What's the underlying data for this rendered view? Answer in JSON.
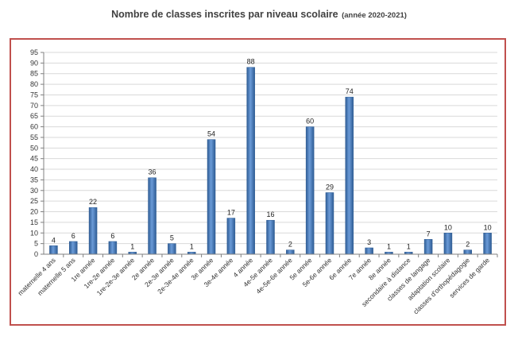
{
  "chart_data": {
    "type": "bar",
    "title": "Nombre de classes inscrites par niveau scolaire",
    "subtitle": "(année 2020-2021)",
    "xlabel": "",
    "ylabel": "",
    "ylim": [
      0,
      95
    ],
    "ytick_step": 5,
    "grid": true,
    "legend": "none",
    "colors": {
      "bar": "#4f81bd",
      "bar_dark": "#2e5c94",
      "frame": "#c0504d",
      "grid": "#d9d9d9"
    },
    "categories": [
      "maternelle 4 ans",
      "maternelle 5 ans",
      "1re année",
      "1re-2e année",
      "1re-2e-3e année",
      "2e année",
      "2e-3e année",
      "2e-3e-4e année",
      "3e année",
      "3e-4e année",
      "4 année",
      "4e-5e année",
      "4e-5e-6e année",
      "5e année",
      "5e-6e année",
      "6e année",
      "7e année",
      "8e année",
      "secondaire à distance",
      "classes de langage",
      "adaptation scolaire",
      "classes d'orthopédagogie",
      "services de garde"
    ],
    "values": [
      4,
      6,
      22,
      6,
      1,
      36,
      5,
      1,
      54,
      17,
      88,
      16,
      2,
      60,
      29,
      74,
      3,
      1,
      1,
      7,
      10,
      2,
      10
    ]
  }
}
